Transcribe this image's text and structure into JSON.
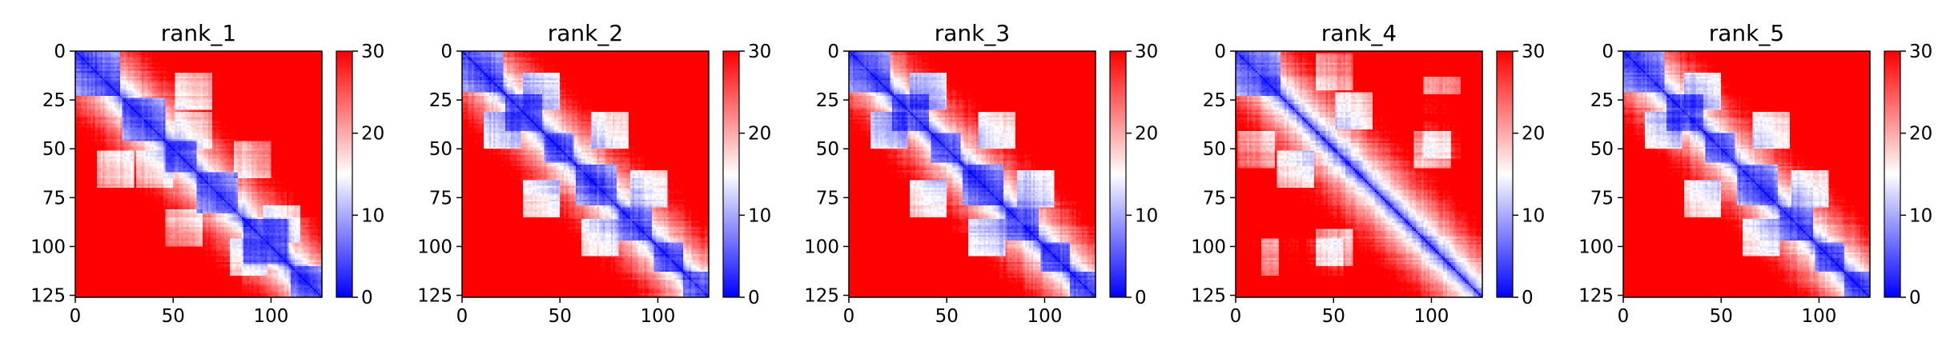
{
  "chart_data": [
    {
      "type": "heatmap",
      "title": "rank_1",
      "xlabel": "",
      "ylabel": "",
      "xlim": [
        0,
        126
      ],
      "ylim": [
        126,
        0
      ],
      "x_ticks": [
        0,
        50,
        100
      ],
      "y_ticks": [
        0,
        25,
        50,
        75,
        100,
        125
      ],
      "colorbar": {
        "cmap": "bwr",
        "vmin": 0,
        "vmax": 30,
        "ticks": [
          0,
          10,
          20,
          30
        ]
      },
      "n_residues": 126,
      "domains": [
        [
          0,
          22
        ],
        [
          24,
          45
        ],
        [
          46,
          61
        ],
        [
          62,
          82
        ],
        [
          86,
          108
        ],
        [
          110,
          125
        ]
      ],
      "contact_blocks": [
        [
          40,
          60,
          0.5
        ],
        [
          55,
          90,
          0.45
        ],
        [
          20,
          60,
          0.35
        ],
        [
          88,
          105,
          0.4
        ]
      ]
    },
    {
      "type": "heatmap",
      "title": "rank_2",
      "xlabel": "",
      "ylabel": "",
      "xlim": [
        0,
        126
      ],
      "ylim": [
        126,
        0
      ],
      "x_ticks": [
        0,
        50,
        100
      ],
      "y_ticks": [
        0,
        25,
        50,
        75,
        100,
        125
      ],
      "colorbar": {
        "cmap": "bwr",
        "vmin": 0,
        "vmax": 30,
        "ticks": [
          0,
          10,
          20,
          30
        ]
      },
      "n_residues": 126,
      "domains": [
        [
          0,
          20
        ],
        [
          22,
          40
        ],
        [
          42,
          56
        ],
        [
          58,
          78
        ],
        [
          80,
          96
        ],
        [
          98,
          112
        ],
        [
          113,
          125
        ]
      ],
      "contact_blocks": [
        [
          40,
          75,
          0.3
        ],
        [
          70,
          95,
          0.35
        ],
        [
          20,
          40,
          0.3
        ]
      ]
    },
    {
      "type": "heatmap",
      "title": "rank_3",
      "xlabel": "",
      "ylabel": "",
      "xlim": [
        0,
        126
      ],
      "ylim": [
        126,
        0
      ],
      "x_ticks": [
        0,
        50,
        100
      ],
      "y_ticks": [
        0,
        25,
        50,
        75,
        100,
        125
      ],
      "colorbar": {
        "cmap": "bwr",
        "vmin": 0,
        "vmax": 30,
        "ticks": [
          0,
          10,
          20,
          30
        ]
      },
      "n_residues": 126,
      "domains": [
        [
          0,
          20
        ],
        [
          22,
          40
        ],
        [
          42,
          56
        ],
        [
          58,
          78
        ],
        [
          80,
          96
        ],
        [
          98,
          112
        ],
        [
          113,
          125
        ]
      ],
      "contact_blocks": [
        [
          40,
          75,
          0.3
        ],
        [
          70,
          95,
          0.3
        ],
        [
          20,
          40,
          0.25
        ]
      ]
    },
    {
      "type": "heatmap",
      "title": "rank_4",
      "xlabel": "",
      "ylabel": "",
      "xlim": [
        0,
        126
      ],
      "ylim": [
        126,
        0
      ],
      "x_ticks": [
        0,
        50,
        100
      ],
      "y_ticks": [
        0,
        25,
        50,
        75,
        100,
        125
      ],
      "colorbar": {
        "cmap": "bwr",
        "vmin": 0,
        "vmax": 30,
        "ticks": [
          0,
          10,
          20,
          30
        ]
      },
      "n_residues": 126,
      "domains": [
        [
          0,
          22
        ]
      ],
      "contact_blocks": [
        [
          10,
          50,
          0.45
        ],
        [
          12,
          105,
          0.45
        ],
        [
          50,
          100,
          0.4
        ],
        [
          22,
          105,
          0.5
        ],
        [
          45,
          105,
          0.5
        ],
        [
          30,
          60,
          0.35
        ]
      ]
    },
    {
      "type": "heatmap",
      "title": "rank_5",
      "xlabel": "",
      "ylabel": "",
      "xlim": [
        0,
        126
      ],
      "ylim": [
        126,
        0
      ],
      "x_ticks": [
        0,
        50,
        100
      ],
      "y_ticks": [
        0,
        25,
        50,
        75,
        100,
        125
      ],
      "colorbar": {
        "cmap": "bwr",
        "vmin": 0,
        "vmax": 30,
        "ticks": [
          0,
          10,
          20,
          30
        ]
      },
      "n_residues": 126,
      "domains": [
        [
          0,
          20
        ],
        [
          22,
          40
        ],
        [
          42,
          56
        ],
        [
          58,
          78
        ],
        [
          80,
          96
        ],
        [
          98,
          112
        ],
        [
          113,
          125
        ]
      ],
      "contact_blocks": [
        [
          40,
          75,
          0.3
        ],
        [
          70,
          95,
          0.35
        ],
        [
          20,
          40,
          0.3
        ]
      ]
    }
  ]
}
